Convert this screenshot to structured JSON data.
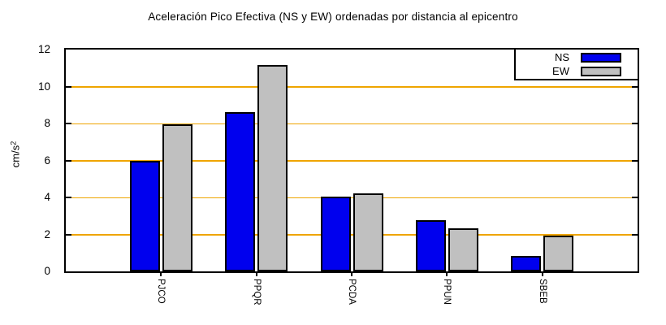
{
  "title": "Aceleración Pico Efectiva (NS y EW) ordenadas por distancia al epicentro",
  "chart_data": {
    "type": "bar",
    "categories": [
      "PJCO",
      "PPQR",
      "PCDA",
      "PPUN",
      "SBEB"
    ],
    "series": [
      {
        "name": "NS",
        "color": "#0000ee",
        "values": [
          6.0,
          8.6,
          4.05,
          2.75,
          0.85
        ]
      },
      {
        "name": "EW",
        "color": "#c0c0c0",
        "values": [
          7.95,
          11.15,
          4.2,
          2.35,
          1.95
        ]
      }
    ],
    "xlabel": "",
    "ylabel": "cm/s²",
    "yticks": [
      0,
      2,
      4,
      6,
      8,
      10,
      12
    ],
    "ylim": [
      0,
      12
    ],
    "grid": true,
    "grid_color": "#efa500",
    "legend_position": "top-right",
    "legend_entries": [
      "NS",
      "EW"
    ],
    "x_tick_rotation": 90,
    "x_axis_note": "ordered by distance to epicenter"
  }
}
